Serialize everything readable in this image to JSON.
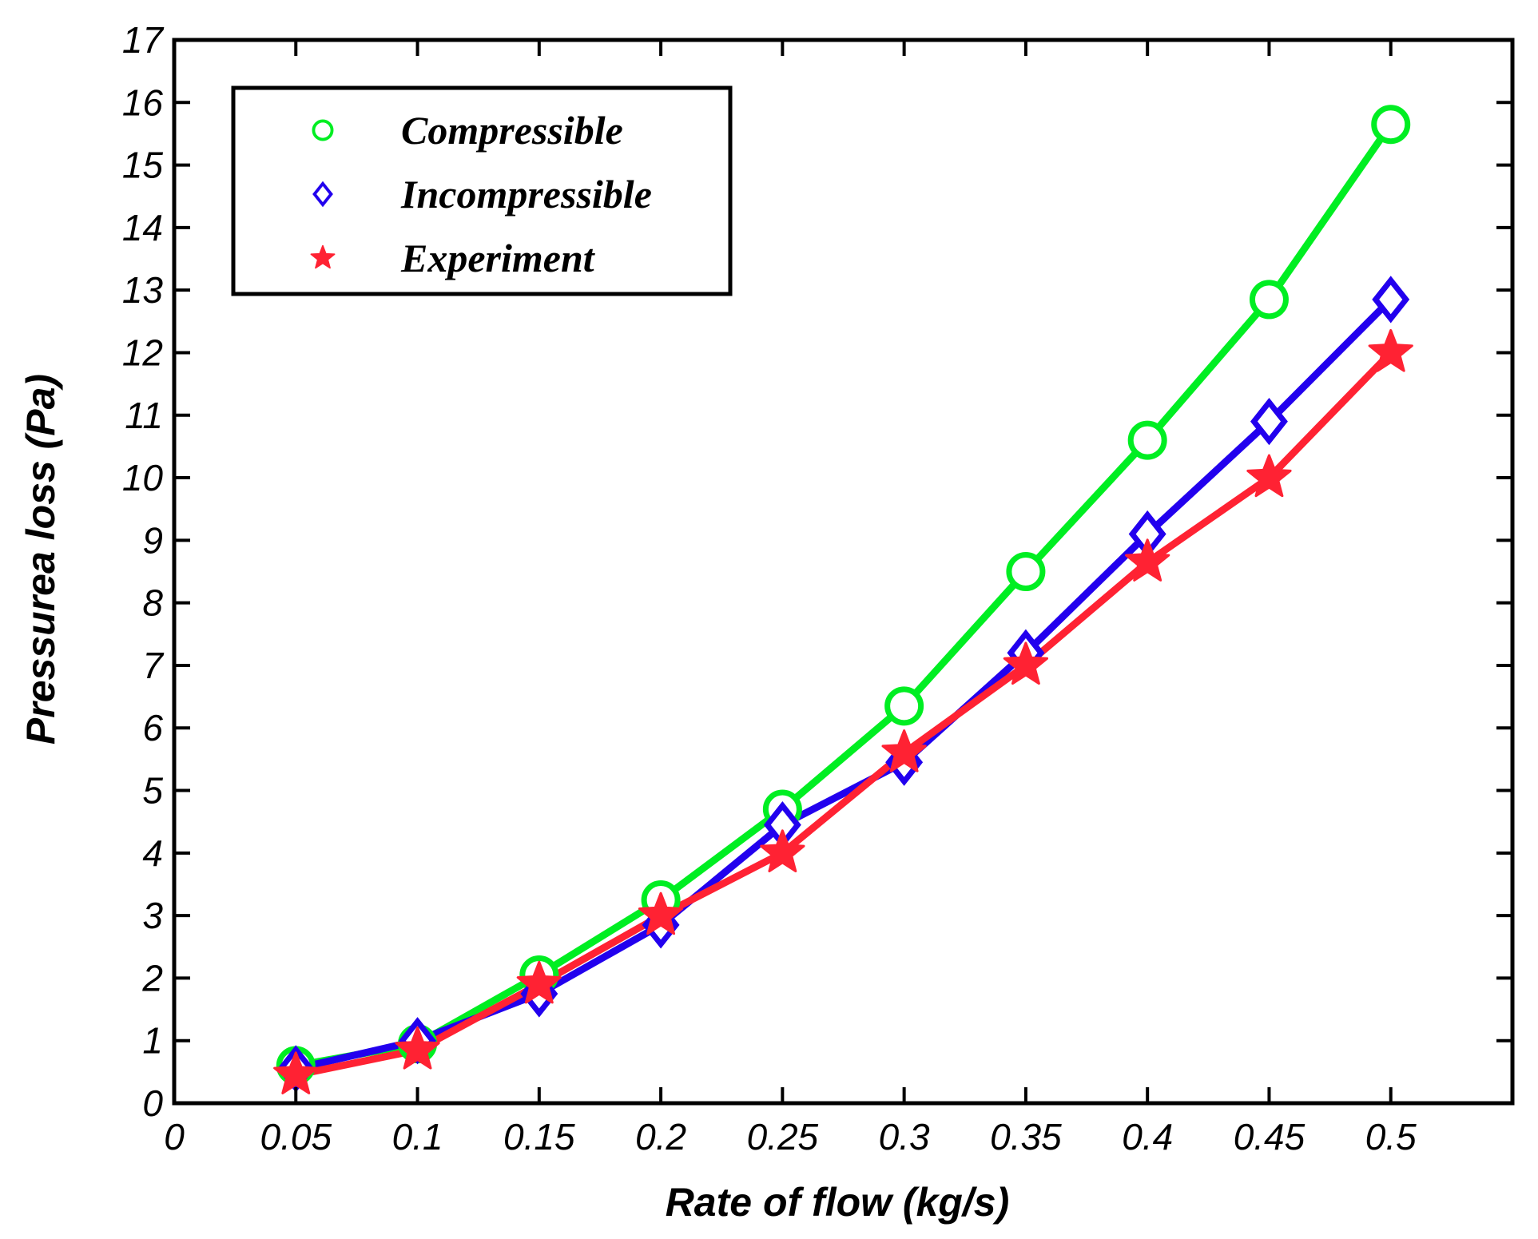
{
  "chart_data": {
    "type": "line",
    "xlabel": "Rate of flow (kg/s)",
    "ylabel": "Pressurea loss (Pa)",
    "xlim": [
      0,
      0.55
    ],
    "ylim": [
      0,
      17
    ],
    "xticks": [
      0,
      0.05,
      0.1,
      0.15,
      0.2,
      0.25,
      0.3,
      0.35,
      0.4,
      0.45,
      0.5
    ],
    "xtick_labels": [
      "0",
      "0.05",
      "0.1",
      "0.15",
      "0.2",
      "0.25",
      "0.3",
      "0.35",
      "0.4",
      "0.45",
      "0.5"
    ],
    "yticks": [
      0,
      1,
      2,
      3,
      4,
      5,
      6,
      7,
      8,
      9,
      10,
      11,
      12,
      13,
      14,
      15,
      16,
      17
    ],
    "ytick_labels": [
      "0",
      "1",
      "2",
      "3",
      "4",
      "5",
      "6",
      "7",
      "8",
      "9",
      "10",
      "11",
      "12",
      "13",
      "14",
      "15",
      "16",
      "17"
    ],
    "grid": false,
    "legend_position": "top-left",
    "x": [
      0.05,
      0.1,
      0.15,
      0.2,
      0.25,
      0.3,
      0.35,
      0.4,
      0.45,
      0.5
    ],
    "series": [
      {
        "name": "Compressible",
        "marker": "circle",
        "color": "#00ee22",
        "values": [
          0.6,
          0.95,
          2.05,
          3.25,
          4.7,
          6.35,
          8.5,
          10.6,
          12.85,
          15.65
        ]
      },
      {
        "name": "Incompressible",
        "marker": "diamond",
        "color": "#2200ee",
        "values": [
          0.55,
          1.0,
          1.75,
          2.85,
          4.45,
          5.45,
          7.2,
          9.1,
          10.9,
          12.85
        ]
      },
      {
        "name": "Experiment",
        "marker": "star",
        "color": "#ff2233",
        "values": [
          0.45,
          0.85,
          1.9,
          3.0,
          4.0,
          5.6,
          7.0,
          8.65,
          10.0,
          12.0
        ]
      }
    ]
  }
}
